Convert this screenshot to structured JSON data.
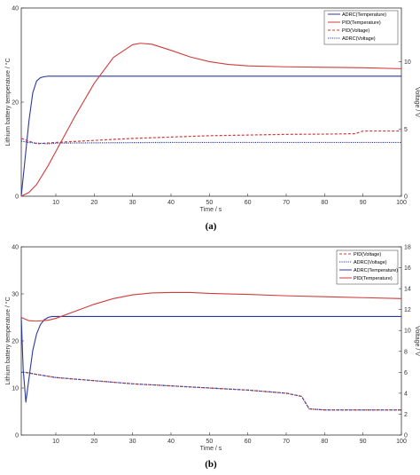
{
  "chart_data": [
    {
      "type": "line",
      "panel_label": "(a)",
      "xlabel": "Time / s",
      "ylabel_left": "Lithium battery temperature / °C",
      "ylabel_right": "Voltage / V",
      "xlim": [
        1,
        100
      ],
      "ylim_left": [
        0,
        40
      ],
      "ylim_right": [
        0,
        14
      ],
      "xticks": [
        "10",
        "20",
        "30",
        "40",
        "50",
        "60",
        "70",
        "80",
        "90",
        "100"
      ],
      "yticks_left": [
        "0",
        "20",
        "40"
      ],
      "yticks_right": [
        "0",
        "5",
        "10"
      ],
      "legend_position": "top-right",
      "grid": false,
      "series": [
        {
          "name": "ADRC(Temperature)",
          "axis": "left",
          "color": "#2b3a9e",
          "dash": "solid",
          "x": [
            1,
            2,
            3,
            4,
            5,
            6,
            7,
            8,
            10,
            15,
            20,
            30,
            40,
            60,
            80,
            100
          ],
          "y": [
            0,
            8,
            16,
            22,
            24.5,
            25.2,
            25.4,
            25.5,
            25.5,
            25.5,
            25.5,
            25.5,
            25.5,
            25.5,
            25.5,
            25.5
          ]
        },
        {
          "name": "PID(Temperature)",
          "axis": "left",
          "color": "#d13b3b",
          "dash": "solid",
          "x": [
            1,
            3,
            5,
            8,
            10,
            15,
            20,
            25,
            30,
            32,
            35,
            40,
            45,
            50,
            55,
            60,
            70,
            80,
            90,
            100
          ],
          "y": [
            0,
            0.8,
            2.5,
            6.5,
            9.5,
            17,
            24,
            29.5,
            32.2,
            32.5,
            32.3,
            31,
            29.6,
            28.6,
            28,
            27.7,
            27.5,
            27.4,
            27.3,
            27.1
          ]
        },
        {
          "name": "PID(Voltage)",
          "axis": "right",
          "color": "#d13b3b",
          "dash": "dashed",
          "x": [
            1,
            5,
            10,
            20,
            30,
            40,
            50,
            60,
            70,
            80,
            88,
            90,
            92,
            100
          ],
          "y": [
            4.3,
            3.9,
            4.0,
            4.15,
            4.3,
            4.4,
            4.5,
            4.55,
            4.6,
            4.62,
            4.65,
            4.85,
            4.85,
            4.85
          ]
        },
        {
          "name": "ADRC(Voltage)",
          "axis": "right",
          "color": "#2b3a9e",
          "dash": "dotted",
          "x": [
            1,
            3,
            5,
            8,
            10,
            20,
            40,
            60,
            80,
            100
          ],
          "y": [
            4.1,
            4.0,
            3.95,
            3.9,
            3.95,
            3.97,
            4.0,
            4.0,
            4.0,
            4.0
          ]
        }
      ]
    },
    {
      "type": "line",
      "panel_label": "(b)",
      "xlabel": "Time / s",
      "ylabel_left": "Lithium battery temperature / °C",
      "ylabel_right": "Voltage / V",
      "xlim": [
        1,
        100
      ],
      "ylim_left": [
        0,
        40
      ],
      "ylim_right": [
        0,
        18
      ],
      "xticks": [
        "10",
        "20",
        "30",
        "40",
        "50",
        "60",
        "70",
        "80",
        "90",
        "100"
      ],
      "yticks_left": [
        "0",
        "10",
        "20",
        "30",
        "40"
      ],
      "yticks_right": [
        "0",
        "2",
        "4",
        "6",
        "8",
        "10",
        "12",
        "14",
        "16",
        "18"
      ],
      "legend_position": "top-right",
      "grid": false,
      "series": [
        {
          "name": "PID(Voltage)",
          "axis": "right",
          "color": "#d13b3b",
          "dash": "dashed",
          "x": [
            1,
            2,
            5,
            10,
            20,
            30,
            40,
            50,
            60,
            70,
            74,
            76,
            80,
            90,
            100
          ],
          "y": [
            6.0,
            6.0,
            5.8,
            5.5,
            5.2,
            4.9,
            4.7,
            4.5,
            4.3,
            4.0,
            3.7,
            2.5,
            2.4,
            2.4,
            2.4
          ]
        },
        {
          "name": "ADRC(Voltage)",
          "axis": "right",
          "color": "#2b3a9e",
          "dash": "dotted",
          "x": [
            1,
            2,
            5,
            10,
            20,
            30,
            40,
            50,
            60,
            70,
            74,
            76,
            80,
            90,
            100
          ],
          "y": [
            6.0,
            6.0,
            5.8,
            5.5,
            5.2,
            4.9,
            4.7,
            4.5,
            4.3,
            4.0,
            3.7,
            2.5,
            2.4,
            2.4,
            2.4
          ]
        },
        {
          "name": "ADRC(Temperature)",
          "axis": "left",
          "color": "#2b3a9e",
          "dash": "solid",
          "x": [
            1,
            1.5,
            2.2,
            3,
            4,
            5,
            6,
            7,
            8,
            9,
            10,
            20,
            40,
            60,
            80,
            100
          ],
          "y": [
            25,
            14,
            7,
            12,
            18,
            21.5,
            23.5,
            24.5,
            25,
            25.2,
            25.2,
            25.2,
            25.2,
            25.2,
            25.2,
            25.2
          ]
        },
        {
          "name": "PID(Temperature)",
          "axis": "left",
          "color": "#d13b3b",
          "dash": "solid",
          "x": [
            1,
            3,
            5,
            8,
            10,
            15,
            20,
            25,
            30,
            35,
            40,
            45,
            50,
            60,
            70,
            80,
            90,
            100
          ],
          "y": [
            25,
            24.3,
            24.2,
            24.4,
            24.8,
            26.3,
            27.8,
            29.0,
            29.8,
            30.2,
            30.3,
            30.3,
            30.1,
            29.9,
            29.6,
            29.4,
            29.2,
            29.0
          ]
        }
      ]
    }
  ],
  "palette": {
    "axis": "#333333",
    "adrc_blue": "#2b3a9e",
    "pid_red": "#d13b3b"
  }
}
